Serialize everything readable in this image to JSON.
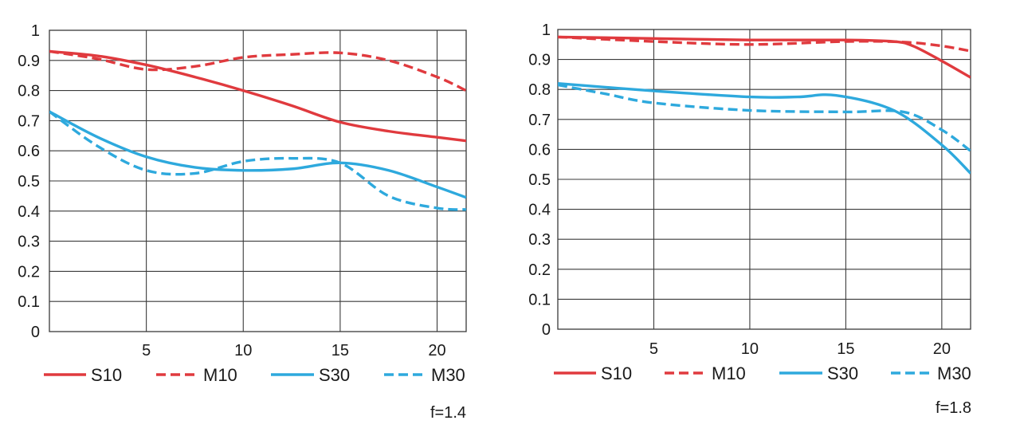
{
  "colors": {
    "red": "#e03a3e",
    "blue": "#2ea9dd",
    "grid": "#3a3a3a"
  },
  "chart_data": [
    {
      "type": "line",
      "note": "f=1.4",
      "xlim": [
        0,
        21.5
      ],
      "ylim": [
        0,
        1
      ],
      "xticks": [
        "5",
        "10",
        "15",
        "20"
      ],
      "yticks": [
        "0",
        "0.1",
        "0.2",
        "0.3",
        "0.4",
        "0.5",
        "0.6",
        "0.7",
        "0.8",
        "0.9",
        "1"
      ],
      "legend": "bottom",
      "series": [
        {
          "name": "S10",
          "color": "red",
          "dashed": false,
          "points": [
            [
              0,
              0.93
            ],
            [
              2.5,
              0.915
            ],
            [
              5,
              0.885
            ],
            [
              7.5,
              0.845
            ],
            [
              10,
              0.8
            ],
            [
              12.5,
              0.75
            ],
            [
              15,
              0.695
            ],
            [
              17.5,
              0.665
            ],
            [
              20,
              0.645
            ],
            [
              21.5,
              0.633
            ]
          ]
        },
        {
          "name": "M10",
          "color": "red",
          "dashed": true,
          "points": [
            [
              0,
              0.93
            ],
            [
              2.5,
              0.905
            ],
            [
              5,
              0.87
            ],
            [
              7.5,
              0.88
            ],
            [
              10,
              0.91
            ],
            [
              12.5,
              0.92
            ],
            [
              15,
              0.925
            ],
            [
              17.5,
              0.9
            ],
            [
              20,
              0.845
            ],
            [
              21.5,
              0.8
            ]
          ]
        },
        {
          "name": "S30",
          "color": "blue",
          "dashed": false,
          "points": [
            [
              0,
              0.73
            ],
            [
              2.5,
              0.645
            ],
            [
              5,
              0.58
            ],
            [
              7.5,
              0.545
            ],
            [
              10,
              0.535
            ],
            [
              12.5,
              0.54
            ],
            [
              15,
              0.56
            ],
            [
              17.5,
              0.535
            ],
            [
              20,
              0.48
            ],
            [
              21.5,
              0.445
            ]
          ]
        },
        {
          "name": "M30",
          "color": "blue",
          "dashed": true,
          "points": [
            [
              0,
              0.73
            ],
            [
              2.5,
              0.615
            ],
            [
              5,
              0.535
            ],
            [
              7.5,
              0.525
            ],
            [
              10,
              0.565
            ],
            [
              12.5,
              0.575
            ],
            [
              15,
              0.56
            ],
            [
              17.5,
              0.45
            ],
            [
              20,
              0.41
            ],
            [
              21.5,
              0.405
            ]
          ]
        }
      ]
    },
    {
      "type": "line",
      "note": "f=1.8",
      "xlim": [
        0,
        21.5
      ],
      "ylim": [
        0,
        1
      ],
      "xticks": [
        "5",
        "10",
        "15",
        "20"
      ],
      "yticks": [
        "0",
        "0.1",
        "0.2",
        "0.3",
        "0.4",
        "0.5",
        "0.6",
        "0.7",
        "0.8",
        "0.9",
        "1"
      ],
      "legend": "bottom",
      "series": [
        {
          "name": "S10",
          "color": "red",
          "dashed": false,
          "points": [
            [
              0,
              0.975
            ],
            [
              5,
              0.97
            ],
            [
              10,
              0.965
            ],
            [
              15,
              0.965
            ],
            [
              17.5,
              0.96
            ],
            [
              18.5,
              0.945
            ],
            [
              20,
              0.895
            ],
            [
              21.5,
              0.84
            ]
          ]
        },
        {
          "name": "M10",
          "color": "red",
          "dashed": true,
          "points": [
            [
              0,
              0.975
            ],
            [
              5,
              0.96
            ],
            [
              10,
              0.95
            ],
            [
              15,
              0.96
            ],
            [
              18,
              0.958
            ],
            [
              20,
              0.945
            ],
            [
              21.5,
              0.928
            ]
          ]
        },
        {
          "name": "S30",
          "color": "blue",
          "dashed": false,
          "points": [
            [
              0,
              0.82
            ],
            [
              5,
              0.795
            ],
            [
              10,
              0.775
            ],
            [
              12.5,
              0.775
            ],
            [
              14.5,
              0.78
            ],
            [
              17.5,
              0.73
            ],
            [
              20,
              0.615
            ],
            [
              21.5,
              0.52
            ]
          ]
        },
        {
          "name": "M30",
          "color": "blue",
          "dashed": true,
          "points": [
            [
              0,
              0.815
            ],
            [
              2.5,
              0.785
            ],
            [
              5,
              0.755
            ],
            [
              10,
              0.73
            ],
            [
              15,
              0.725
            ],
            [
              18,
              0.725
            ],
            [
              20,
              0.665
            ],
            [
              21.5,
              0.595
            ]
          ]
        }
      ]
    }
  ]
}
